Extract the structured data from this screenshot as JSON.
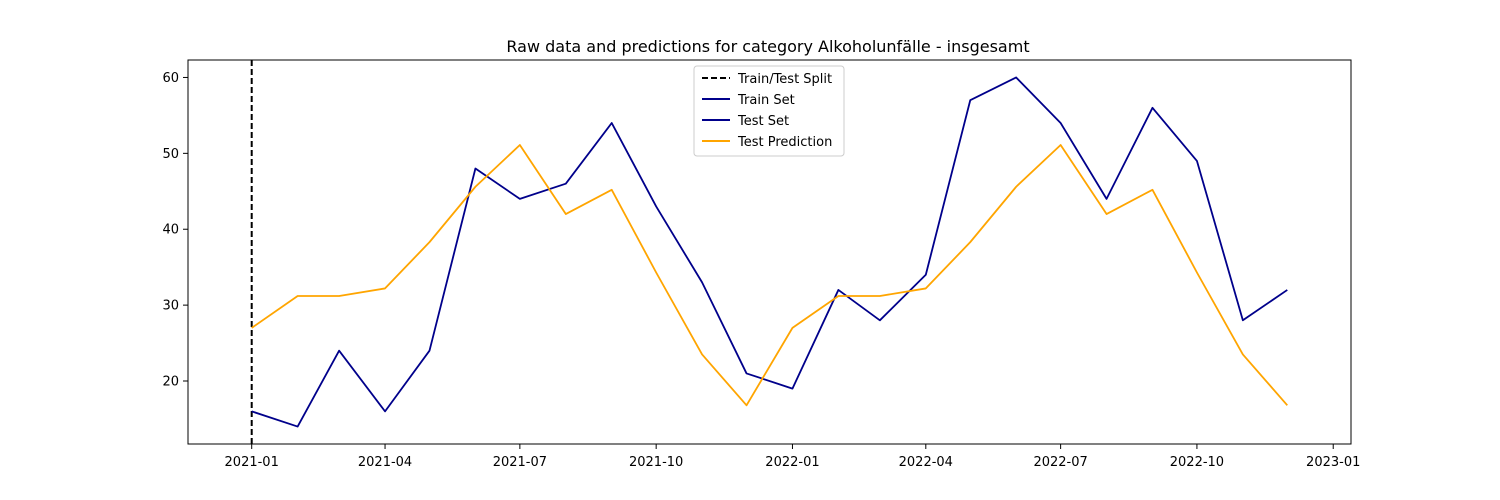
{
  "colors": {
    "split": "#000000",
    "train": "#00008b",
    "test": "#00008b",
    "prediction": "#ffa500"
  },
  "chart_data": {
    "type": "line",
    "title": "Raw data and predictions for category Alkoholunfälle - insgesamt",
    "xlabel": "",
    "ylabel": "",
    "xlim": [
      "2020-11-19",
      "2023-01-13"
    ],
    "ylim": [
      11.7,
      62.3
    ],
    "x_ticks": [
      "2021-01",
      "2021-04",
      "2021-07",
      "2021-10",
      "2022-01",
      "2022-04",
      "2022-07",
      "2022-10",
      "2023-01"
    ],
    "y_ticks": [
      20,
      30,
      40,
      50,
      60
    ],
    "legend_position": "upper center",
    "split_date": "2021-01-01",
    "series": [
      {
        "name": "Train Set",
        "style": "solid",
        "x": [],
        "values": []
      },
      {
        "name": "Test Set",
        "style": "solid",
        "x": [
          "2021-01-01",
          "2021-02-01",
          "2021-03-01",
          "2021-04-01",
          "2021-05-01",
          "2021-06-01",
          "2021-07-01",
          "2021-08-01",
          "2021-09-01",
          "2021-10-01",
          "2021-11-01",
          "2021-12-01",
          "2022-01-01",
          "2022-02-01",
          "2022-03-01",
          "2022-04-01",
          "2022-05-01",
          "2022-06-01",
          "2022-07-01",
          "2022-08-01",
          "2022-09-01",
          "2022-10-01",
          "2022-11-01",
          "2022-12-01"
        ],
        "values": [
          16,
          14,
          24,
          16,
          24,
          48,
          44,
          46,
          54,
          43,
          33,
          21,
          19,
          32,
          28,
          34,
          57,
          60,
          54,
          44,
          56,
          49,
          28,
          32
        ]
      },
      {
        "name": "Test Prediction",
        "style": "solid",
        "x": [
          "2021-01-01",
          "2021-02-01",
          "2021-03-01",
          "2021-04-01",
          "2021-05-01",
          "2021-06-01",
          "2021-07-01",
          "2021-08-01",
          "2021-09-01",
          "2021-10-01",
          "2021-11-01",
          "2021-12-01",
          "2022-01-01",
          "2022-02-01",
          "2022-03-01",
          "2022-04-01",
          "2022-05-01",
          "2022-06-01",
          "2022-07-01",
          "2022-08-01",
          "2022-09-01",
          "2022-10-01",
          "2022-11-01",
          "2022-12-01"
        ],
        "values": [
          27,
          31.2,
          31.2,
          32.2,
          38.3,
          45.6,
          51.1,
          42,
          45.2,
          34.3,
          23.5,
          16.8,
          27,
          31.2,
          31.2,
          32.2,
          38.3,
          45.6,
          51.1,
          42,
          45.2,
          34.3,
          23.5,
          16.8
        ]
      }
    ],
    "legend": [
      "Train/Test Split",
      "Train Set",
      "Test Set",
      "Test Prediction"
    ]
  }
}
